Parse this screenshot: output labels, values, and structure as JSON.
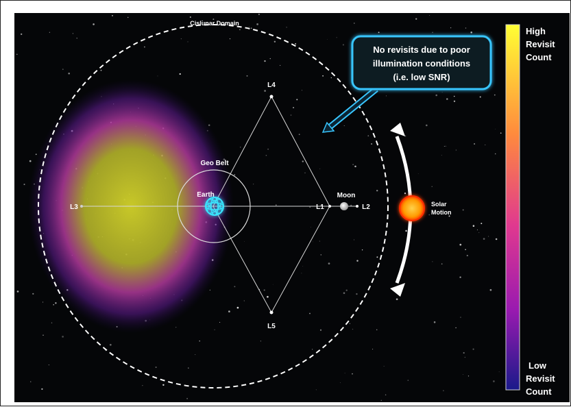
{
  "labels": {
    "cislunar_domain": "Cislunar Domain",
    "geo_belt": "Geo Belt",
    "earth": "Earth",
    "moon": "Moon",
    "l1": "L1",
    "l2": "L2",
    "l3": "L3",
    "l4": "L4",
    "l5": "L5",
    "solar_line1": "Solar",
    "solar_line2": "Motion"
  },
  "callout": {
    "line1": "No revisits due to poor",
    "line2": "illumination conditions",
    "line3": "(i.e. low SNR)"
  },
  "colorbar": {
    "high_line1": "High",
    "high_line2": "Revisit",
    "high_line3": "Count",
    "low_line1": "Low",
    "low_line2": "Revisit",
    "low_line3": "Count",
    "colors": [
      "#ffff33",
      "#ff8a3d",
      "#e0398f",
      "#9a1ab0",
      "#1a1a8a"
    ]
  },
  "colors": {
    "background": "#050608",
    "callout_border": "#39c6ff",
    "earth": "#39e6ff",
    "sun": "#ffb000"
  }
}
